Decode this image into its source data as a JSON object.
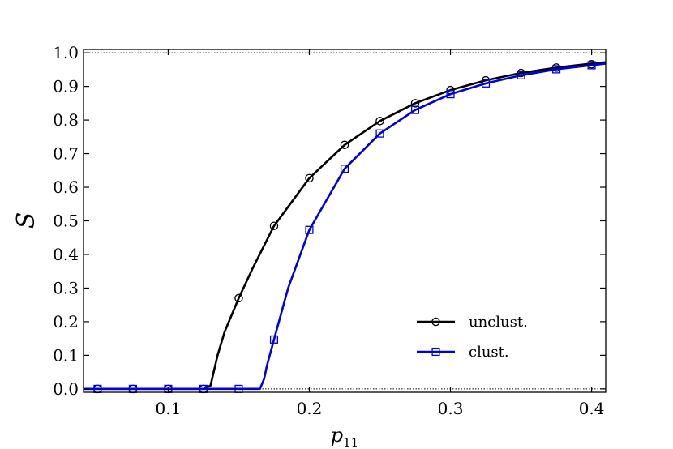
{
  "chart_data": {
    "type": "line",
    "xlabel": "p",
    "xlabel_sub": "11",
    "ylabel": "S",
    "xlim": [
      0.04,
      0.41
    ],
    "ylim": [
      -0.01,
      1.01
    ],
    "xticks": [
      0.1,
      0.2,
      0.3,
      0.4
    ],
    "xtick_labels": [
      "0.1",
      "0.2",
      "0.3",
      "0.4"
    ],
    "yticks": [
      0.0,
      0.1,
      0.2,
      0.3,
      0.4,
      0.5,
      0.6,
      0.7,
      0.8,
      0.9,
      1.0
    ],
    "ytick_labels": [
      "0.0",
      "0.1",
      "0.2",
      "0.3",
      "0.4",
      "0.5",
      "0.6",
      "0.7",
      "0.8",
      "0.9",
      "1.0"
    ],
    "reference_lines": [
      0.0,
      1.0
    ],
    "legend_position": "lower-right",
    "series": [
      {
        "name": "unclust.",
        "color": "#000000",
        "marker": "circle",
        "curve_x": [
          0.04,
          0.05,
          0.075,
          0.1,
          0.125,
          0.13,
          0.135,
          0.14,
          0.15,
          0.16,
          0.175,
          0.2,
          0.225,
          0.25,
          0.275,
          0.3,
          0.325,
          0.35,
          0.375,
          0.4,
          0.41
        ],
        "curve_y": [
          0,
          0,
          0,
          0,
          0,
          0.01,
          0.1,
          0.17,
          0.27,
          0.36,
          0.485,
          0.627,
          0.726,
          0.797,
          0.85,
          0.889,
          0.918,
          0.94,
          0.956,
          0.968,
          0.972
        ],
        "marker_x": [
          0.05,
          0.075,
          0.1,
          0.125,
          0.15,
          0.175,
          0.2,
          0.225,
          0.25,
          0.275,
          0.3,
          0.325,
          0.35,
          0.375,
          0.4
        ],
        "marker_y": [
          0,
          0,
          0,
          0,
          0.27,
          0.485,
          0.627,
          0.726,
          0.797,
          0.85,
          0.889,
          0.918,
          0.94,
          0.956,
          0.966
        ]
      },
      {
        "name": "clust.",
        "color": "#0000dd",
        "marker": "square",
        "curve_x": [
          0.04,
          0.05,
          0.075,
          0.1,
          0.125,
          0.15,
          0.165,
          0.168,
          0.17,
          0.175,
          0.185,
          0.2,
          0.225,
          0.25,
          0.275,
          0.3,
          0.325,
          0.35,
          0.375,
          0.4,
          0.41
        ],
        "curve_y": [
          0,
          0,
          0,
          0,
          0,
          0,
          0,
          0.03,
          0.07,
          0.147,
          0.3,
          0.473,
          0.655,
          0.76,
          0.83,
          0.877,
          0.909,
          0.933,
          0.951,
          0.963,
          0.968
        ],
        "marker_x": [
          0.05,
          0.075,
          0.1,
          0.125,
          0.15,
          0.175,
          0.2,
          0.225,
          0.25,
          0.275,
          0.3,
          0.325,
          0.35,
          0.375,
          0.4
        ],
        "marker_y": [
          0,
          0,
          0,
          0,
          0,
          0.147,
          0.473,
          0.655,
          0.76,
          0.83,
          0.877,
          0.909,
          0.933,
          0.951,
          0.963
        ]
      }
    ]
  }
}
